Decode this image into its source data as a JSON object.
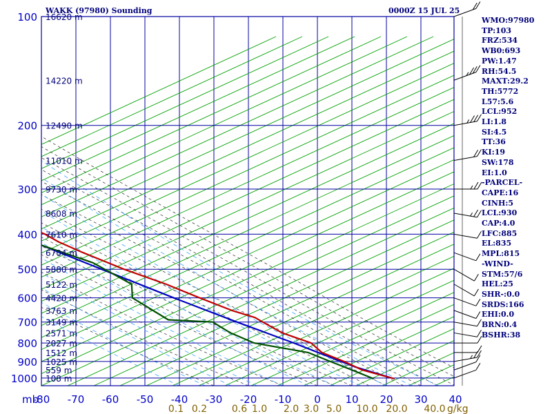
{
  "header": {
    "title": "WAKK (97980) Sounding",
    "timestamp": "0000Z 15 JUL 25"
  },
  "colors": {
    "grid": "#0000a0",
    "dry_adiabats": "#00a000",
    "moist_adiabats": "#404040",
    "mixing_ratio": "#3aa0ff",
    "temperature": "#c00000",
    "dewpoint": "#005000",
    "parcel": "#0000c0",
    "labels": "#00007a",
    "mixing_labels": "#806000"
  },
  "chart_data": {
    "type": "skew-t",
    "pressure_axis_unit": "mb",
    "mixing_ratio_unit": "g/kg",
    "pressure_levels": [
      100,
      200,
      300,
      400,
      500,
      600,
      700,
      800,
      900,
      1000
    ],
    "pressure_labels": [
      "100",
      "200",
      "300",
      "400",
      "500",
      "600",
      "700",
      "800",
      "900",
      "1000"
    ],
    "temperature_ticks": [
      -80,
      -70,
      -60,
      -50,
      -40,
      -30,
      -20,
      -10,
      0,
      10,
      20,
      30,
      40
    ],
    "temperature_labels": [
      "-80",
      "-70",
      "-60",
      "-50",
      "-40",
      "-30",
      "-20",
      "-10",
      "0",
      "10",
      "20",
      "30",
      "40"
    ],
    "mixing_ratio_lines": [
      0.1,
      0.2,
      0.6,
      1.0,
      2.0,
      3.0,
      5.0,
      10.0,
      20.0,
      30.0,
      40.0
    ],
    "mixing_ratio_labels": [
      "0.1",
      "0.2",
      "0.6",
      "1.0",
      "2.0",
      "3.0",
      "5.0",
      "10.0",
      "20.0",
      "40.0"
    ],
    "heights": [
      {
        "p": 100,
        "label": "16620 m"
      },
      {
        "p": 150,
        "label": "14220 m"
      },
      {
        "p": 200,
        "label": "12490 m"
      },
      {
        "p": 250,
        "label": "11010 m"
      },
      {
        "p": 300,
        "label": "9730 m"
      },
      {
        "p": 350,
        "label": "8608 m"
      },
      {
        "p": 400,
        "label": "7610 m"
      },
      {
        "p": 450,
        "label": "6704 m"
      },
      {
        "p": 500,
        "label": "5880 m"
      },
      {
        "p": 550,
        "label": "5122 m"
      },
      {
        "p": 600,
        "label": "4420 m"
      },
      {
        "p": 650,
        "label": "3763 m"
      },
      {
        "p": 700,
        "label": "3149 m"
      },
      {
        "p": 750,
        "label": "2571 m"
      },
      {
        "p": 800,
        "label": "2027 m"
      },
      {
        "p": 850,
        "label": "1512 m"
      },
      {
        "p": 900,
        "label": "1025 m"
      },
      {
        "p": 950,
        "label": "559 m"
      },
      {
        "p": 1000,
        "label": "108 m"
      }
    ],
    "temperature": [
      {
        "p": 1005,
        "t": 25.0
      },
      {
        "p": 950,
        "t": 19.0
      },
      {
        "p": 900,
        "t": 17.0
      },
      {
        "p": 850,
        "t": 14.0
      },
      {
        "p": 800,
        "t": 14.5
      },
      {
        "p": 750,
        "t": 10.0
      },
      {
        "p": 700,
        "t": 8.5
      },
      {
        "p": 680,
        "t": 8.0
      },
      {
        "p": 650,
        "t": 4.0
      },
      {
        "p": 600,
        "t": -0.5
      },
      {
        "p": 550,
        "t": -5.0
      },
      {
        "p": 500,
        "t": -11.5
      },
      {
        "p": 450,
        "t": -17.0
      },
      {
        "p": 420,
        "t": -20.0
      },
      {
        "p": 400,
        "t": -21.0
      },
      {
        "p": 300,
        "t": -35.0
      },
      {
        "p": 250,
        "t": -44.0
      },
      {
        "p": 200,
        "t": -56.0
      },
      {
        "p": 150,
        "t": -68.0
      },
      {
        "p": 100,
        "t": -80.0
      }
    ],
    "dewpoint": [
      {
        "p": 1005,
        "t": 19.0
      },
      {
        "p": 950,
        "t": 16.0
      },
      {
        "p": 900,
        "t": 13.0
      },
      {
        "p": 850,
        "t": 10.0
      },
      {
        "p": 800,
        "t": -2.0
      },
      {
        "p": 750,
        "t": -5.0
      },
      {
        "p": 700,
        "t": -6.0
      },
      {
        "p": 690,
        "t": -18.0
      },
      {
        "p": 600,
        "t": -20.0
      },
      {
        "p": 550,
        "t": -15.0
      },
      {
        "p": 480,
        "t": -18.0
      },
      {
        "p": 430,
        "t": -26.0
      },
      {
        "p": 410,
        "t": -58.0
      },
      {
        "p": 380,
        "t": -63.0
      },
      {
        "p": 300,
        "t": -68.0
      },
      {
        "p": 220,
        "t": -66.0
      },
      {
        "p": 200,
        "t": -70.0
      },
      {
        "p": 150,
        "t": -78.0
      },
      {
        "p": 120,
        "t": -87.0
      }
    ],
    "parcel": [
      {
        "p": 1005,
        "t": 25.0
      },
      {
        "p": 930,
        "t": 18.0
      },
      {
        "p": 800,
        "t": 9.5
      },
      {
        "p": 700,
        "t": 1.0
      },
      {
        "p": 600,
        "t": -8.0
      },
      {
        "p": 500,
        "t": -18.0
      },
      {
        "p": 400,
        "t": -30.0
      },
      {
        "p": 300,
        "t": -45.0
      },
      {
        "p": 200,
        "t": -63.0
      },
      {
        "p": 130,
        "t": -80.0
      }
    ],
    "wind_barbs": [
      {
        "p": 1000,
        "dir": 70,
        "spd": 10
      },
      {
        "p": 950,
        "dir": 70,
        "spd": 10
      },
      {
        "p": 900,
        "dir": 80,
        "spd": 15
      },
      {
        "p": 850,
        "dir": 90,
        "spd": 10
      },
      {
        "p": 800,
        "dir": 90,
        "spd": 10
      },
      {
        "p": 750,
        "dir": 100,
        "spd": 10
      },
      {
        "p": 700,
        "dir": 100,
        "spd": 10
      },
      {
        "p": 650,
        "dir": 110,
        "spd": 10
      },
      {
        "p": 600,
        "dir": 110,
        "spd": 10
      },
      {
        "p": 550,
        "dir": 120,
        "spd": 10
      },
      {
        "p": 500,
        "dir": 120,
        "spd": 10
      },
      {
        "p": 450,
        "dir": 110,
        "spd": 10
      },
      {
        "p": 400,
        "dir": 100,
        "spd": 10
      },
      {
        "p": 350,
        "dir": 100,
        "spd": 15
      },
      {
        "p": 300,
        "dir": 90,
        "spd": 15
      },
      {
        "p": 250,
        "dir": 80,
        "spd": 20
      },
      {
        "p": 200,
        "dir": 80,
        "spd": 25
      },
      {
        "p": 150,
        "dir": 70,
        "spd": 25
      },
      {
        "p": 100,
        "dir": 70,
        "spd": 20
      }
    ]
  },
  "indices": [
    "WMO:97980",
    "TP:103",
    "FRZ:534",
    "WB0:693",
    "PW:1.47",
    "RH:54.5",
    "MAXT:29.2",
    "TH:5772",
    "L57:5.6",
    "LCL:952",
    "LI:1.8",
    "SI:4.5",
    "TT:36",
    "KI:19",
    "SW:178",
    "EI:1.0",
    "-PARCEL-",
    "CAPE:16",
    "CINH:5",
    "LCL:930",
    "CAP:4.0",
    "LFC:885",
    "EL:835",
    "MPL:815",
    "-WIND-",
    "STM:57/6",
    "HEL:25",
    "SHR-:0.0",
    "SRDS:166",
    "EHI:0.0",
    "BRN:0.4",
    "BSHR:38"
  ]
}
